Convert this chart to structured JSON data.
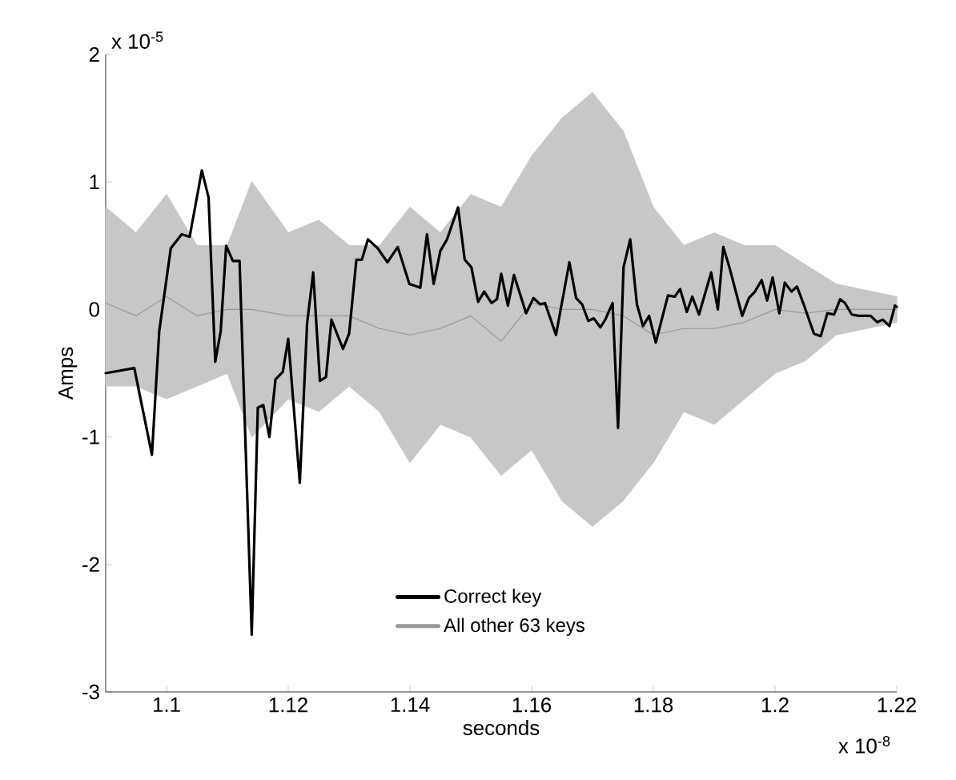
{
  "chart_data": {
    "type": "line",
    "xlabel": "seconds",
    "ylabel": "Amps",
    "annotations": [
      "x 10$^{-5}$",
      "x 10$^{-8}$"
    ],
    "xlim": [
      1.09,
      1.22
    ],
    "xticks": [
      1.1,
      1.12,
      1.14,
      1.16,
      1.18,
      1.2,
      1.22
    ],
    "ylim": [
      -3,
      2
    ],
    "yticks": [
      -3,
      -2,
      -1,
      0,
      1,
      2
    ],
    "legend": "bottom",
    "marker": "none",
    "series": [
      {
        "name": "Correct key",
        "color": "#000000",
        "x": [
          1.09,
          1.0947,
          1.0976,
          1.0988,
          1.1007,
          1.1025,
          1.1038,
          1.1058,
          1.1069,
          1.108,
          1.1089,
          1.1098,
          1.1109,
          1.112,
          1.114,
          1.115,
          1.1159,
          1.1169,
          1.1179,
          1.1191,
          1.12,
          1.1219,
          1.1231,
          1.1241,
          1.1252,
          1.1262,
          1.1271,
          1.129,
          1.13,
          1.1312,
          1.1321,
          1.1331,
          1.1347,
          1.1363,
          1.138,
          1.1399,
          1.1417,
          1.1428,
          1.1439,
          1.145,
          1.1461,
          1.1479,
          1.149,
          1.1501,
          1.1512,
          1.1522,
          1.1534,
          1.1543,
          1.155,
          1.1561,
          1.1571,
          1.1591,
          1.1603,
          1.1614,
          1.1622,
          1.164,
          1.1662,
          1.1673,
          1.1683,
          1.1693,
          1.1702,
          1.1713,
          1.1721,
          1.1733,
          1.1742,
          1.1751,
          1.1762,
          1.1773,
          1.1783,
          1.1793,
          1.1804,
          1.1824,
          1.1835,
          1.1844,
          1.1855,
          1.1864,
          1.1875,
          1.1895,
          1.1906,
          1.1915,
          1.1925,
          1.1946,
          1.1957,
          1.1967,
          1.1978,
          1.1987,
          1.1996,
          1.2007,
          1.2016,
          1.2027,
          1.2036,
          1.2047,
          1.2064,
          1.2075,
          1.2086,
          1.2097,
          1.2107,
          1.2115,
          1.2126,
          1.2137,
          1.2157,
          1.2168,
          1.2177,
          1.2188,
          1.2197,
          1.22
        ],
        "values": [
          -0.5,
          -0.46,
          -1.14,
          -0.17,
          0.48,
          0.59,
          0.57,
          1.09,
          0.88,
          -0.41,
          -0.17,
          0.5,
          0.38,
          0.38,
          -2.55,
          -0.77,
          -0.75,
          -1.0,
          -0.55,
          -0.49,
          -0.23,
          -1.36,
          -0.11,
          0.29,
          -0.56,
          -0.53,
          -0.08,
          -0.31,
          -0.19,
          0.39,
          0.39,
          0.55,
          0.48,
          0.37,
          0.49,
          0.2,
          0.17,
          0.59,
          0.2,
          0.46,
          0.55,
          0.8,
          0.39,
          0.33,
          0.06,
          0.14,
          0.05,
          0.08,
          0.28,
          0.03,
          0.27,
          -0.03,
          0.09,
          0.04,
          0.05,
          -0.2,
          0.37,
          0.09,
          0.04,
          -0.09,
          -0.07,
          -0.14,
          -0.08,
          0.05,
          -0.93,
          0.33,
          0.55,
          0.04,
          -0.13,
          -0.05,
          -0.26,
          0.11,
          0.1,
          0.16,
          -0.02,
          0.1,
          -0.04,
          0.29,
          0.0,
          0.49,
          0.33,
          -0.05,
          0.09,
          0.14,
          0.23,
          0.07,
          0.25,
          -0.03,
          0.21,
          0.14,
          0.18,
          0.04,
          -0.19,
          -0.21,
          -0.03,
          -0.04,
          0.08,
          0.05,
          -0.04,
          -0.05,
          -0.05,
          -0.1,
          -0.08,
          -0.13,
          0.03,
          0.02
        ]
      },
      {
        "name": "All other 63 keys",
        "color": "#999999",
        "x": [
          1.09,
          1.095,
          1.1,
          1.105,
          1.11,
          1.114,
          1.12,
          1.125,
          1.13,
          1.135,
          1.14,
          1.145,
          1.15,
          1.155,
          1.16,
          1.165,
          1.17,
          1.175,
          1.18,
          1.185,
          1.19,
          1.195,
          1.2,
          1.205,
          1.21,
          1.215,
          1.22
        ],
        "upper": [
          0.8,
          0.6,
          0.9,
          0.5,
          0.5,
          1.0,
          0.6,
          0.7,
          0.5,
          0.5,
          0.8,
          0.6,
          0.9,
          0.8,
          1.2,
          1.5,
          1.7,
          1.4,
          0.8,
          0.5,
          0.6,
          0.5,
          0.5,
          0.35,
          0.2,
          0.15,
          0.1
        ],
        "lower": [
          -0.6,
          -0.6,
          -0.7,
          -0.6,
          -0.5,
          -1.0,
          -0.7,
          -0.8,
          -0.6,
          -0.8,
          -1.2,
          -0.9,
          -1.0,
          -1.3,
          -1.1,
          -1.5,
          -1.7,
          -1.5,
          -1.2,
          -0.8,
          -0.9,
          -0.7,
          -0.5,
          -0.4,
          -0.2,
          -0.15,
          -0.1
        ],
        "values": [
          0.05,
          -0.05,
          0.1,
          -0.05,
          0.0,
          0.0,
          -0.05,
          -0.05,
          -0.05,
          -0.15,
          -0.2,
          -0.15,
          -0.05,
          -0.25,
          0.05,
          0.0,
          0.0,
          -0.05,
          -0.2,
          -0.15,
          -0.15,
          -0.1,
          0.0,
          -0.03,
          0.0,
          0.0,
          0.0
        ]
      }
    ]
  }
}
